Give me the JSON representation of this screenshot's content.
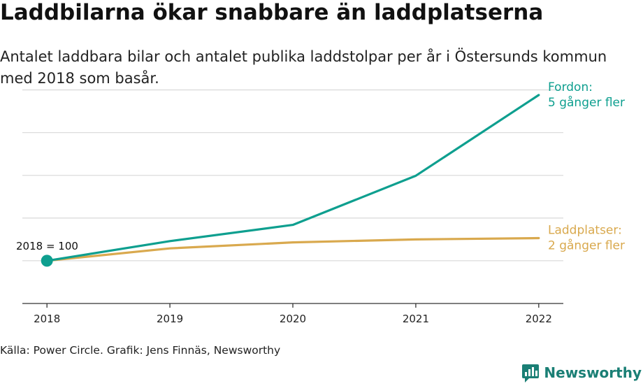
{
  "title": "Laddbilarna ökar snabbare än laddplatserna",
  "subtitle": "Antalet laddbara bilar och antalet publika laddstolpar per år i Östersunds kommun med 2018 som basår.",
  "source": "Källa: Power Circle. Grafik: Jens Finnäs, Newsworthy",
  "brand": {
    "name": "Newsworthy",
    "logo_icon": "bar-chart-speech-bubble-icon",
    "color": "#1a7f75"
  },
  "chart_data": {
    "type": "line",
    "x": [
      2018,
      2019,
      2020,
      2021,
      2022
    ],
    "xlim": [
      2017.8,
      2022.2
    ],
    "ylim": [
      0,
      550
    ],
    "gridlines": [
      100,
      200,
      300,
      400,
      500
    ],
    "grid": true,
    "base_label": "2018 = 100",
    "series": [
      {
        "name": "Fordon",
        "color": "#0e9f8f",
        "values": [
          100,
          146,
          184,
          299,
          488
        ],
        "end_label": [
          "Fordon:",
          "5 gånger fler"
        ]
      },
      {
        "name": "Laddplatser",
        "color": "#d9a94e",
        "values": [
          100,
          129,
          143,
          150,
          153
        ],
        "end_label": [
          "Laddplatser:",
          "2 gånger fler"
        ]
      }
    ]
  }
}
